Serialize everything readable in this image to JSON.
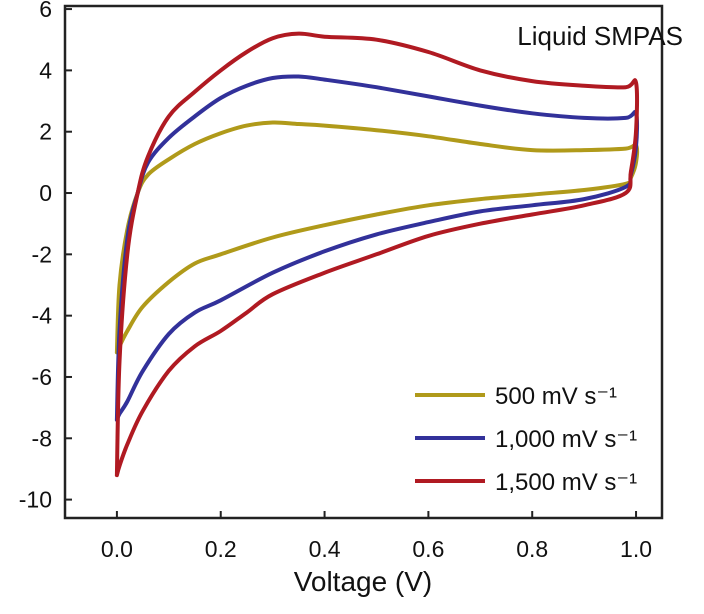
{
  "chart_data": {
    "type": "line",
    "title": "",
    "annotation": "Liquid SMPAS",
    "xlabel": "Voltage (V)",
    "ylabel": "",
    "xlim": [
      -0.1,
      1.05
    ],
    "ylim": [
      -10.6,
      6.1
    ],
    "xticks": [
      0.0,
      0.2,
      0.4,
      0.6,
      0.8,
      1.0
    ],
    "xtick_labels": [
      "0.0",
      "0.2",
      "0.4",
      "0.6",
      "0.8",
      "1.0"
    ],
    "yticks": [
      6,
      4,
      2,
      0,
      -2,
      -4,
      -6,
      -8,
      -10
    ],
    "ytick_labels": [
      "6",
      "4",
      "2",
      "0",
      "-2",
      "-4",
      "-6",
      "-8",
      "-10"
    ],
    "grid": false,
    "legend_position": "bottom-right",
    "series": [
      {
        "name": "500 mV s⁻¹",
        "color": "#b09a1a",
        "points": [
          [
            0.0,
            -5.2
          ],
          [
            0.005,
            -3.0
          ],
          [
            0.02,
            -1.2
          ],
          [
            0.04,
            0.0
          ],
          [
            0.06,
            0.6
          ],
          [
            0.1,
            1.1
          ],
          [
            0.15,
            1.6
          ],
          [
            0.2,
            1.95
          ],
          [
            0.25,
            2.2
          ],
          [
            0.3,
            2.3
          ],
          [
            0.35,
            2.25
          ],
          [
            0.4,
            2.2
          ],
          [
            0.5,
            2.05
          ],
          [
            0.6,
            1.85
          ],
          [
            0.7,
            1.6
          ],
          [
            0.8,
            1.4
          ],
          [
            0.9,
            1.4
          ],
          [
            0.98,
            1.45
          ],
          [
            1.0,
            1.55
          ],
          [
            1.0,
            1.0
          ],
          [
            0.99,
            0.5
          ],
          [
            0.98,
            0.3
          ],
          [
            0.9,
            0.1
          ],
          [
            0.8,
            -0.05
          ],
          [
            0.7,
            -0.2
          ],
          [
            0.6,
            -0.4
          ],
          [
            0.5,
            -0.7
          ],
          [
            0.4,
            -1.05
          ],
          [
            0.3,
            -1.45
          ],
          [
            0.2,
            -2.0
          ],
          [
            0.15,
            -2.3
          ],
          [
            0.1,
            -2.9
          ],
          [
            0.05,
            -3.7
          ],
          [
            0.02,
            -4.5
          ],
          [
            0.005,
            -5.0
          ],
          [
            0.0,
            -5.2
          ]
        ]
      },
      {
        "name": "1,000 mV s⁻¹",
        "color": "#32319a",
        "points": [
          [
            0.0,
            -7.4
          ],
          [
            0.005,
            -4.5
          ],
          [
            0.02,
            -1.5
          ],
          [
            0.04,
            0.0
          ],
          [
            0.06,
            1.0
          ],
          [
            0.1,
            1.8
          ],
          [
            0.15,
            2.5
          ],
          [
            0.2,
            3.1
          ],
          [
            0.25,
            3.5
          ],
          [
            0.3,
            3.75
          ],
          [
            0.35,
            3.8
          ],
          [
            0.4,
            3.7
          ],
          [
            0.5,
            3.45
          ],
          [
            0.6,
            3.15
          ],
          [
            0.7,
            2.85
          ],
          [
            0.8,
            2.6
          ],
          [
            0.9,
            2.45
          ],
          [
            0.98,
            2.45
          ],
          [
            1.0,
            2.6
          ],
          [
            1.0,
            1.5
          ],
          [
            0.99,
            0.6
          ],
          [
            0.98,
            0.2
          ],
          [
            0.9,
            -0.2
          ],
          [
            0.8,
            -0.4
          ],
          [
            0.7,
            -0.6
          ],
          [
            0.6,
            -0.95
          ],
          [
            0.5,
            -1.35
          ],
          [
            0.4,
            -1.9
          ],
          [
            0.3,
            -2.6
          ],
          [
            0.2,
            -3.5
          ],
          [
            0.15,
            -3.9
          ],
          [
            0.1,
            -4.6
          ],
          [
            0.05,
            -5.8
          ],
          [
            0.02,
            -6.8
          ],
          [
            0.005,
            -7.2
          ],
          [
            0.0,
            -7.4
          ]
        ]
      },
      {
        "name": "1,500 mV s⁻¹",
        "color": "#b01a22",
        "points": [
          [
            0.0,
            -9.2
          ],
          [
            0.005,
            -5.5
          ],
          [
            0.02,
            -2.0
          ],
          [
            0.04,
            0.0
          ],
          [
            0.06,
            1.2
          ],
          [
            0.1,
            2.5
          ],
          [
            0.15,
            3.3
          ],
          [
            0.2,
            4.0
          ],
          [
            0.25,
            4.6
          ],
          [
            0.3,
            5.05
          ],
          [
            0.35,
            5.2
          ],
          [
            0.4,
            5.1
          ],
          [
            0.5,
            5.0
          ],
          [
            0.6,
            4.6
          ],
          [
            0.7,
            4.0
          ],
          [
            0.8,
            3.65
          ],
          [
            0.9,
            3.5
          ],
          [
            0.98,
            3.45
          ],
          [
            1.0,
            3.6
          ],
          [
            1.0,
            2.0
          ],
          [
            0.99,
            0.7
          ],
          [
            0.98,
            0.0
          ],
          [
            0.9,
            -0.4
          ],
          [
            0.8,
            -0.7
          ],
          [
            0.7,
            -1.0
          ],
          [
            0.6,
            -1.4
          ],
          [
            0.5,
            -2.0
          ],
          [
            0.4,
            -2.6
          ],
          [
            0.3,
            -3.3
          ],
          [
            0.25,
            -3.9
          ],
          [
            0.2,
            -4.5
          ],
          [
            0.15,
            -5.0
          ],
          [
            0.1,
            -5.8
          ],
          [
            0.05,
            -7.1
          ],
          [
            0.02,
            -8.2
          ],
          [
            0.005,
            -8.9
          ],
          [
            0.0,
            -9.2
          ]
        ]
      }
    ]
  }
}
